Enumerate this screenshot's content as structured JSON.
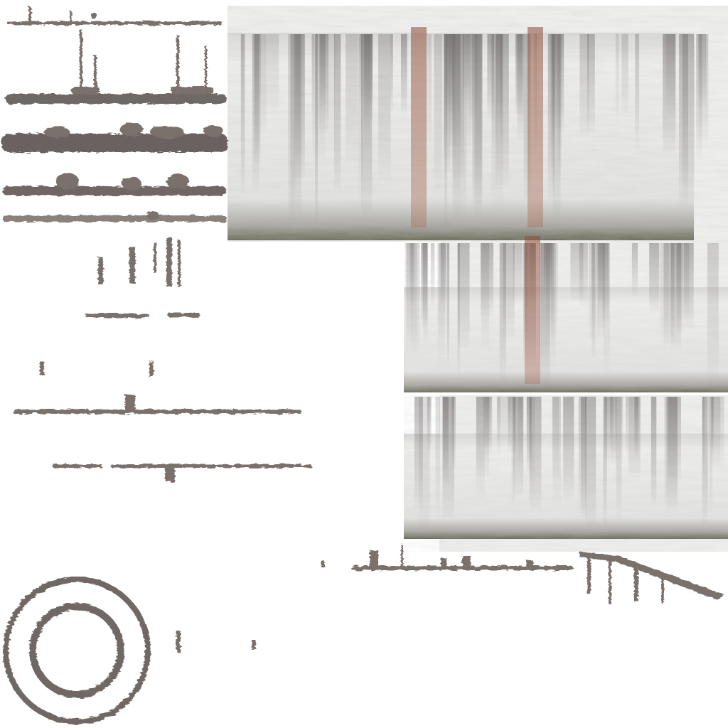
{
  "texture_atlas": {
    "background_color": "#ffffff",
    "palette": {
      "concrete_light": "#ececea",
      "concrete_mid": "#c9c9c7",
      "stain_dark": "#8a8684",
      "grime": "#6f6865",
      "rust": "#9a5a44",
      "bluish_stain": "#8f94b0",
      "moss": "#6c6e5c"
    },
    "panels": [
      {
        "name": "stained-concrete-wall-large"
      },
      {
        "name": "stained-concrete-wall-mid"
      },
      {
        "name": "stained-concrete-wall-low"
      }
    ],
    "decals": [
      {
        "name": "grime-strip-thin"
      },
      {
        "name": "grime-strip-with-drips"
      },
      {
        "name": "grime-strip-heavy"
      },
      {
        "name": "grime-strip-mossy"
      },
      {
        "name": "grime-strip-fine"
      },
      {
        "name": "drip-cluster"
      },
      {
        "name": "grime-dashes"
      },
      {
        "name": "drip-dots"
      },
      {
        "name": "long-grime-strip"
      },
      {
        "name": "grime-strip-split"
      },
      {
        "name": "grime-strip-right"
      },
      {
        "name": "diagonal-drip-strip"
      },
      {
        "name": "grime-rings"
      },
      {
        "name": "small-drips-bottom"
      }
    ]
  }
}
